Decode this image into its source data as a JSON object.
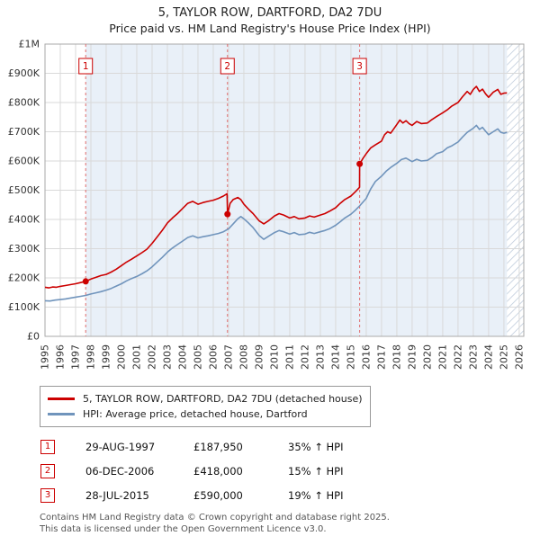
{
  "header": {
    "title": "5, TAYLOR ROW, DARTFORD, DA2 7DU",
    "subtitle": "Price paid vs. HM Land Registry's House Price Index (HPI)"
  },
  "chart_data": {
    "type": "line",
    "title": "5, TAYLOR ROW, DARTFORD, DA2 7DU",
    "subtitle": "Price paid vs. HM Land Registry's House Price Index (HPI)",
    "colors": {
      "accent": "#cc0000",
      "hpi_blue": "#7094bc",
      "shade": "#e9f0f8",
      "grid": "#d9d9d9",
      "border": "#aaaaaa",
      "dashed_sale_line": "#e06c6c",
      "axis_text": "#333333"
    },
    "x_axis": {
      "min": 1995,
      "max": 2026.3,
      "ticks": [
        1995,
        1996,
        1997,
        1998,
        1999,
        2000,
        2001,
        2002,
        2003,
        2004,
        2005,
        2006,
        2007,
        2008,
        2009,
        2010,
        2011,
        2012,
        2013,
        2014,
        2015,
        2016,
        2017,
        2018,
        2019,
        2020,
        2021,
        2022,
        2023,
        2024,
        2025,
        2026
      ]
    },
    "y_axis": {
      "min": 0,
      "max": 1000,
      "unit": "GBP thousands",
      "tick_step": 100,
      "tick_labels": [
        "£0",
        "£100K",
        "£200K",
        "£300K",
        "£400K",
        "£500K",
        "£600K",
        "£700K",
        "£800K",
        "£900K",
        "£1M"
      ]
    },
    "regions": {
      "shaded_from": 1997.66,
      "hatch_from": 2025.2
    },
    "series": [
      {
        "name": "5, TAYLOR ROW, DARTFORD, DA2 7DU (detached house)",
        "color": "#cc0000",
        "points": [
          [
            1995,
            168
          ],
          [
            1995.25,
            166
          ],
          [
            1995.5,
            169
          ],
          [
            1995.75,
            168
          ],
          [
            1996,
            171
          ],
          [
            1996.33,
            174
          ],
          [
            1996.66,
            177
          ],
          [
            1997,
            180
          ],
          [
            1997.33,
            184
          ],
          [
            1997.66,
            188
          ],
          [
            1998,
            196
          ],
          [
            1998.33,
            202
          ],
          [
            1998.66,
            208
          ],
          [
            1999,
            212
          ],
          [
            1999.33,
            220
          ],
          [
            1999.66,
            230
          ],
          [
            2000,
            242
          ],
          [
            2000.33,
            254
          ],
          [
            2000.66,
            264
          ],
          [
            2001,
            275
          ],
          [
            2001.33,
            286
          ],
          [
            2001.66,
            298
          ],
          [
            2002,
            318
          ],
          [
            2002.33,
            340
          ],
          [
            2002.66,
            362
          ],
          [
            2003,
            388
          ],
          [
            2003.33,
            405
          ],
          [
            2003.66,
            420
          ],
          [
            2004,
            438
          ],
          [
            2004.33,
            455
          ],
          [
            2004.66,
            462
          ],
          [
            2005,
            452
          ],
          [
            2005.33,
            458
          ],
          [
            2005.66,
            462
          ],
          [
            2006,
            466
          ],
          [
            2006.33,
            472
          ],
          [
            2006.66,
            480
          ],
          [
            2006.9,
            488
          ],
          [
            2006.93,
            418
          ],
          [
            2007.1,
            455
          ],
          [
            2007.3,
            468
          ],
          [
            2007.6,
            475
          ],
          [
            2007.8,
            468
          ],
          [
            2008,
            452
          ],
          [
            2008.3,
            435
          ],
          [
            2008.6,
            420
          ],
          [
            2009,
            395
          ],
          [
            2009.3,
            385
          ],
          [
            2009.6,
            395
          ],
          [
            2010,
            412
          ],
          [
            2010.3,
            420
          ],
          [
            2010.6,
            415
          ],
          [
            2011,
            405
          ],
          [
            2011.3,
            410
          ],
          [
            2011.6,
            402
          ],
          [
            2012,
            405
          ],
          [
            2012.3,
            412
          ],
          [
            2012.6,
            408
          ],
          [
            2013,
            415
          ],
          [
            2013.3,
            420
          ],
          [
            2013.6,
            428
          ],
          [
            2014,
            440
          ],
          [
            2014.3,
            455
          ],
          [
            2014.6,
            468
          ],
          [
            2015,
            480
          ],
          [
            2015.3,
            495
          ],
          [
            2015.56,
            510
          ],
          [
            2015.57,
            590
          ],
          [
            2015.8,
            610
          ],
          [
            2016,
            625
          ],
          [
            2016.3,
            645
          ],
          [
            2016.6,
            655
          ],
          [
            2017,
            668
          ],
          [
            2017.2,
            690
          ],
          [
            2017.4,
            700
          ],
          [
            2017.6,
            695
          ],
          [
            2017.8,
            710
          ],
          [
            2018,
            725
          ],
          [
            2018.2,
            740
          ],
          [
            2018.4,
            730
          ],
          [
            2018.6,
            738
          ],
          [
            2018.8,
            728
          ],
          [
            2019,
            722
          ],
          [
            2019.3,
            735
          ],
          [
            2019.6,
            728
          ],
          [
            2020,
            730
          ],
          [
            2020.3,
            742
          ],
          [
            2020.6,
            752
          ],
          [
            2021,
            765
          ],
          [
            2021.3,
            775
          ],
          [
            2021.6,
            788
          ],
          [
            2022,
            800
          ],
          [
            2022.3,
            820
          ],
          [
            2022.6,
            838
          ],
          [
            2022.8,
            828
          ],
          [
            2023,
            845
          ],
          [
            2023.2,
            855
          ],
          [
            2023.4,
            838
          ],
          [
            2023.6,
            846
          ],
          [
            2023.8,
            830
          ],
          [
            2024,
            818
          ],
          [
            2024.3,
            835
          ],
          [
            2024.6,
            845
          ],
          [
            2024.8,
            828
          ],
          [
            2025,
            832
          ],
          [
            2025.2,
            833
          ]
        ]
      },
      {
        "name": "HPI: Average price, detached house, Dartford",
        "color": "#7094bc",
        "points": [
          [
            1995,
            122
          ],
          [
            1995.33,
            121
          ],
          [
            1995.66,
            124
          ],
          [
            1996,
            126
          ],
          [
            1996.33,
            128
          ],
          [
            1996.66,
            131
          ],
          [
            1997,
            134
          ],
          [
            1997.33,
            137
          ],
          [
            1997.66,
            140
          ],
          [
            1998,
            145
          ],
          [
            1998.33,
            149
          ],
          [
            1998.66,
            153
          ],
          [
            1999,
            158
          ],
          [
            1999.33,
            164
          ],
          [
            1999.66,
            172
          ],
          [
            2000,
            180
          ],
          [
            2000.33,
            190
          ],
          [
            2000.66,
            198
          ],
          [
            2001,
            205
          ],
          [
            2001.33,
            214
          ],
          [
            2001.66,
            224
          ],
          [
            2002,
            238
          ],
          [
            2002.33,
            254
          ],
          [
            2002.66,
            270
          ],
          [
            2003,
            288
          ],
          [
            2003.33,
            302
          ],
          [
            2003.66,
            314
          ],
          [
            2004,
            326
          ],
          [
            2004.33,
            338
          ],
          [
            2004.66,
            344
          ],
          [
            2005,
            337
          ],
          [
            2005.33,
            341
          ],
          [
            2005.66,
            344
          ],
          [
            2006,
            348
          ],
          [
            2006.33,
            352
          ],
          [
            2006.66,
            358
          ],
          [
            2007,
            368
          ],
          [
            2007.3,
            385
          ],
          [
            2007.6,
            402
          ],
          [
            2007.8,
            410
          ],
          [
            2008,
            402
          ],
          [
            2008.3,
            388
          ],
          [
            2008.6,
            372
          ],
          [
            2009,
            345
          ],
          [
            2009.3,
            332
          ],
          [
            2009.6,
            342
          ],
          [
            2010,
            355
          ],
          [
            2010.3,
            362
          ],
          [
            2010.6,
            358
          ],
          [
            2011,
            350
          ],
          [
            2011.3,
            355
          ],
          [
            2011.6,
            348
          ],
          [
            2012,
            350
          ],
          [
            2012.3,
            356
          ],
          [
            2012.6,
            352
          ],
          [
            2013,
            358
          ],
          [
            2013.3,
            362
          ],
          [
            2013.6,
            368
          ],
          [
            2014,
            380
          ],
          [
            2014.3,
            392
          ],
          [
            2014.6,
            405
          ],
          [
            2015,
            418
          ],
          [
            2015.3,
            432
          ],
          [
            2015.6,
            448
          ],
          [
            2016,
            472
          ],
          [
            2016.3,
            505
          ],
          [
            2016.6,
            530
          ],
          [
            2017,
            548
          ],
          [
            2017.3,
            565
          ],
          [
            2017.6,
            578
          ],
          [
            2018,
            592
          ],
          [
            2018.3,
            605
          ],
          [
            2018.6,
            610
          ],
          [
            2019,
            598
          ],
          [
            2019.3,
            606
          ],
          [
            2019.6,
            600
          ],
          [
            2020,
            602
          ],
          [
            2020.3,
            612
          ],
          [
            2020.6,
            625
          ],
          [
            2021,
            632
          ],
          [
            2021.3,
            645
          ],
          [
            2021.6,
            652
          ],
          [
            2022,
            665
          ],
          [
            2022.3,
            682
          ],
          [
            2022.6,
            698
          ],
          [
            2023,
            712
          ],
          [
            2023.2,
            722
          ],
          [
            2023.4,
            708
          ],
          [
            2023.6,
            715
          ],
          [
            2023.8,
            702
          ],
          [
            2024,
            690
          ],
          [
            2024.3,
            700
          ],
          [
            2024.6,
            710
          ],
          [
            2024.8,
            698
          ],
          [
            2025,
            695
          ],
          [
            2025.2,
            698
          ]
        ]
      }
    ],
    "sales_markers": [
      {
        "label": "1",
        "year": 1997.66,
        "value_k": 187.95
      },
      {
        "label": "2",
        "year": 2006.93,
        "value_k": 418
      },
      {
        "label": "3",
        "year": 2015.57,
        "value_k": 590
      }
    ],
    "legend_position": "below",
    "grid": true
  },
  "legend": [
    {
      "label": "5, TAYLOR ROW, DARTFORD, DA2 7DU (detached house)"
    },
    {
      "label": "HPI: Average price, detached house, Dartford"
    }
  ],
  "sales": [
    {
      "num": "1",
      "date": "29-AUG-1997",
      "price": "£187,950",
      "hpi": "35% ↑ HPI"
    },
    {
      "num": "2",
      "date": "06-DEC-2006",
      "price": "£418,000",
      "hpi": "15% ↑ HPI"
    },
    {
      "num": "3",
      "date": "28-JUL-2015",
      "price": "£590,000",
      "hpi": "19% ↑ HPI"
    }
  ],
  "footer": {
    "line1": "Contains HM Land Registry data © Crown copyright and database right 2025.",
    "line2": "This data is licensed under the Open Government Licence v3.0."
  }
}
